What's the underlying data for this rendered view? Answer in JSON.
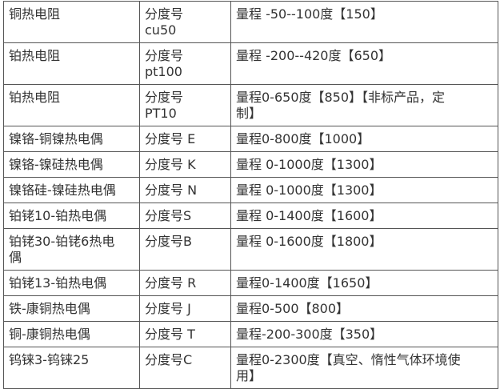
{
  "rows": [
    {
      "type": "铜热电阻",
      "grade": "分度号\ncu50",
      "range": "量程 -50--100度【150】"
    },
    {
      "type": "铂热电阻",
      "grade": "分度号\npt100",
      "range": "量程 -200--420度【650】"
    },
    {
      "type": "铂热电阻",
      "grade": "分度号\nPT10",
      "range": "量程0-650度【850】【非标产品，定\n制】"
    },
    {
      "type": "镍铬-铜镍热电偶",
      "grade": "分度号 E",
      "range": "量程0-800度【1000】"
    },
    {
      "type": "镍铬-镍硅热电偶",
      "grade": "分度号 K",
      "range": "量程 0-1000度【1300】"
    },
    {
      "type": "镍铬硅-镍硅热电偶",
      "grade": "分度号 N",
      "range": "量程 0-1000度【1300】"
    },
    {
      "type": "铂铑10-铂热电偶",
      "grade": "分度号S",
      "range": "量程 0-1400度【1600】"
    },
    {
      "type": "铂铑30-铂铑6热电\n偶",
      "grade": "分度号B",
      "range": "量程 0-1600度【1800】"
    },
    {
      "type": "铂铑13-铂热电偶",
      "grade": "分度号 R",
      "range": "量程0-1400度【1650】"
    },
    {
      "type": "铁-康铜热电偶",
      "grade": "分度号 J",
      "range": "量程0-500【800】"
    },
    {
      "type": "铜-康铜热电偶",
      "grade": "分度号 T",
      "range": "量程-200-300度【350】"
    },
    {
      "type": "钨铼3-钨铼25",
      "grade": "分度号C",
      "range": "量程0-2300度【真空、惰性气体环境使\n用】"
    }
  ]
}
